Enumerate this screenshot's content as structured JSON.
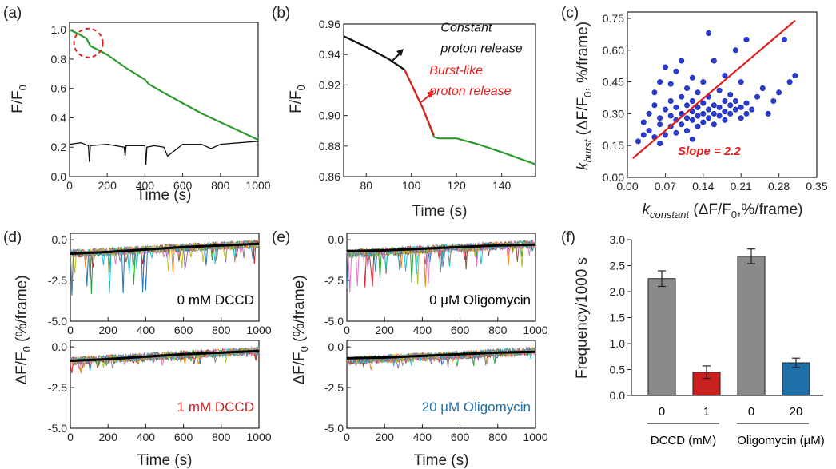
{
  "chart_data": [
    {
      "panel": "(a)",
      "type": "line",
      "xlabel": "Time (s)",
      "ylabel": "F/F0",
      "xlim": [
        0,
        1000
      ],
      "ylim": [
        0,
        1.05
      ],
      "xticks": [
        0,
        200,
        400,
        600,
        800,
        1000
      ],
      "yticks": [
        0.0,
        0.2,
        0.4,
        0.6,
        0.8,
        1.0
      ],
      "colors": {
        "green": "#2e9a2e",
        "black": "#111111",
        "circle": "#e02020"
      },
      "series": [
        {
          "color": "#2e9a2e",
          "x": [
            0,
            50,
            90,
            110,
            200,
            300,
            400,
            420,
            500,
            600,
            700,
            800,
            900,
            1000
          ],
          "y": [
            1.0,
            0.97,
            0.94,
            0.89,
            0.83,
            0.74,
            0.66,
            0.63,
            0.57,
            0.5,
            0.43,
            0.37,
            0.31,
            0.25
          ]
        },
        {
          "color": "#111111",
          "x": [
            0,
            60,
            100,
            105,
            110,
            200,
            290,
            295,
            300,
            400,
            405,
            410,
            450,
            500,
            520,
            600,
            700,
            750,
            800,
            900,
            1000
          ],
          "y": [
            0.22,
            0.23,
            0.21,
            0.1,
            0.21,
            0.22,
            0.2,
            0.14,
            0.21,
            0.21,
            0.08,
            0.2,
            0.21,
            0.2,
            0.14,
            0.22,
            0.22,
            0.19,
            0.22,
            0.23,
            0.24
          ]
        }
      ],
      "highlight": {
        "x": 100,
        "y": 0.91
      }
    },
    {
      "panel": "(b)",
      "type": "line",
      "xlabel": "Time (s)",
      "ylabel": "F/F0",
      "xlim": [
        70,
        155
      ],
      "ylim": [
        0.86,
        0.96
      ],
      "xticks": [
        80,
        100,
        120,
        140
      ],
      "yticks": [
        0.86,
        0.88,
        0.9,
        0.92,
        0.94,
        0.96
      ],
      "series": [
        {
          "color": "#2e9a2e",
          "x": [
            70,
            80,
            90,
            97,
            105,
            110,
            112,
            120,
            130,
            140,
            155
          ],
          "y": [
            0.952,
            0.945,
            0.937,
            0.93,
            0.905,
            0.886,
            0.885,
            0.885,
            0.881,
            0.876,
            0.868
          ]
        },
        {
          "color": "#111111",
          "x": [
            70,
            80,
            90,
            97
          ],
          "y": [
            0.952,
            0.945,
            0.937,
            0.93
          ]
        },
        {
          "color": "#e02020",
          "x": [
            97,
            105,
            110
          ],
          "y": [
            0.93,
            0.905,
            0.887
          ]
        }
      ],
      "annotations": [
        {
          "text": "Constant",
          "color": "#111111",
          "x": 113,
          "y": 0.955
        },
        {
          "text": "proton release",
          "color": "#111111",
          "x": 113,
          "y": 0.9415
        },
        {
          "text": "Burst-like",
          "color": "#e02020",
          "x": 108,
          "y": 0.927
        },
        {
          "text": "proton release",
          "color": "#e02020",
          "x": 108,
          "y": 0.9135
        }
      ]
    },
    {
      "panel": "(c)",
      "type": "scatter",
      "xlabel": "constant",
      "ylabel": "burst",
      "xlim": [
        0.0,
        0.35
      ],
      "ylim": [
        0.0,
        0.78
      ],
      "xticks": [
        "0.00",
        "0.07",
        "0.14",
        "0.21",
        "0.28",
        "0.35"
      ],
      "yticks": [
        "0.00",
        "0.15",
        "0.30",
        "0.45",
        "0.60",
        "0.75"
      ],
      "fit": {
        "x": [
          0.01,
          0.31
        ],
        "y": [
          0.09,
          0.74
        ],
        "color": "#e02020"
      },
      "fit_label": "Slope = 2.2",
      "point_color": "#2b3bd8",
      "points": [
        [
          0.02,
          0.17
        ],
        [
          0.03,
          0.2
        ],
        [
          0.03,
          0.26
        ],
        [
          0.04,
          0.22
        ],
        [
          0.04,
          0.3
        ],
        [
          0.05,
          0.19
        ],
        [
          0.05,
          0.34
        ],
        [
          0.05,
          0.4
        ],
        [
          0.06,
          0.25
        ],
        [
          0.06,
          0.45
        ],
        [
          0.06,
          0.28
        ],
        [
          0.07,
          0.32
        ],
        [
          0.07,
          0.2
        ],
        [
          0.07,
          0.52
        ],
        [
          0.08,
          0.24
        ],
        [
          0.08,
          0.36
        ],
        [
          0.08,
          0.29
        ],
        [
          0.08,
          0.44
        ],
        [
          0.09,
          0.27
        ],
        [
          0.09,
          0.33
        ],
        [
          0.09,
          0.5
        ],
        [
          0.09,
          0.21
        ],
        [
          0.1,
          0.3
        ],
        [
          0.1,
          0.38
        ],
        [
          0.1,
          0.25
        ],
        [
          0.1,
          0.55
        ],
        [
          0.11,
          0.28
        ],
        [
          0.11,
          0.34
        ],
        [
          0.11,
          0.42
        ],
        [
          0.11,
          0.22
        ],
        [
          0.12,
          0.31
        ],
        [
          0.12,
          0.27
        ],
        [
          0.12,
          0.47
        ],
        [
          0.12,
          0.36
        ],
        [
          0.13,
          0.29
        ],
        [
          0.13,
          0.33
        ],
        [
          0.13,
          0.24
        ],
        [
          0.13,
          0.4
        ],
        [
          0.14,
          0.3
        ],
        [
          0.14,
          0.35
        ],
        [
          0.14,
          0.26
        ],
        [
          0.14,
          0.45
        ],
        [
          0.15,
          0.68
        ],
        [
          0.15,
          0.32
        ],
        [
          0.15,
          0.28
        ],
        [
          0.15,
          0.38
        ],
        [
          0.16,
          0.3
        ],
        [
          0.16,
          0.34
        ],
        [
          0.16,
          0.55
        ],
        [
          0.16,
          0.25
        ],
        [
          0.17,
          0.33
        ],
        [
          0.17,
          0.29
        ],
        [
          0.17,
          0.41
        ],
        [
          0.18,
          0.31
        ],
        [
          0.18,
          0.36
        ],
        [
          0.18,
          0.48
        ],
        [
          0.18,
          0.27
        ],
        [
          0.19,
          0.34
        ],
        [
          0.19,
          0.3
        ],
        [
          0.19,
          0.39
        ],
        [
          0.2,
          0.32
        ],
        [
          0.2,
          0.36
        ],
        [
          0.2,
          0.6
        ],
        [
          0.21,
          0.33
        ],
        [
          0.21,
          0.28
        ],
        [
          0.21,
          0.45
        ],
        [
          0.22,
          0.35
        ],
        [
          0.22,
          0.3
        ],
        [
          0.22,
          0.65
        ],
        [
          0.23,
          0.32
        ],
        [
          0.24,
          0.38
        ],
        [
          0.25,
          0.42
        ],
        [
          0.26,
          0.3
        ],
        [
          0.27,
          0.36
        ],
        [
          0.28,
          0.4
        ],
        [
          0.29,
          0.65
        ],
        [
          0.3,
          0.45
        ],
        [
          0.31,
          0.48
        ],
        [
          0.06,
          0.16
        ],
        [
          0.12,
          0.18
        ]
      ]
    },
    {
      "panel": "(d)",
      "type": "line",
      "xlabel": "Time (s)",
      "ylabel": "ΔF/F0 (%/frame)",
      "xlim": [
        0,
        1000
      ],
      "xticks": [
        0,
        200,
        400,
        600,
        800,
        1000
      ],
      "sub_top": {
        "label": "0 mM DCCD",
        "label_color": "#111111",
        "ylim": [
          -5.0,
          0.4
        ],
        "yticks": [
          "-5.0",
          "-2.5",
          "0.0"
        ]
      },
      "sub_bottom": {
        "label": "1 mM DCCD",
        "label_color": "#c8201f",
        "ylim": [
          -5.0,
          0.4
        ],
        "yticks": [
          "-5.0",
          "-2.5",
          "0.0"
        ]
      },
      "mean": {
        "x": [
          0,
          200,
          400,
          600,
          800,
          1000
        ],
        "y": [
          -0.85,
          -0.75,
          -0.6,
          -0.45,
          -0.35,
          -0.25
        ]
      }
    },
    {
      "panel": "(e)",
      "type": "line",
      "xlabel": "Time (s)",
      "ylabel": "ΔF/F0 (%/frame)",
      "xlim": [
        0,
        1000
      ],
      "xticks": [
        0,
        200,
        400,
        600,
        800,
        1000
      ],
      "sub_top": {
        "label": "0 µM Oligomycin",
        "label_color": "#111111",
        "ylim": [
          -5.0,
          0.4
        ],
        "yticks": [
          "-5.0",
          "-2.5",
          "0.0"
        ]
      },
      "sub_bottom": {
        "label": "20 µM Oligomycin",
        "label_color": "#1f6fa8",
        "ylim": [
          -5.0,
          0.4
        ],
        "yticks": [
          "-5.0",
          "-2.5",
          "0.0"
        ]
      },
      "mean": {
        "x": [
          0,
          200,
          400,
          600,
          800,
          1000
        ],
        "y": [
          -0.7,
          -0.65,
          -0.55,
          -0.45,
          -0.35,
          -0.3
        ]
      }
    },
    {
      "panel": "(f)",
      "type": "bar",
      "ylabel": "Frequency/1000 s",
      "ylim": [
        0,
        3.0
      ],
      "yticks": [
        "0.0",
        "0.5",
        "1.0",
        "1.5",
        "2.0",
        "2.5",
        "3.0"
      ],
      "categories": [
        "0",
        "1",
        "0",
        "20"
      ],
      "values": [
        2.25,
        0.45,
        2.68,
        0.63
      ],
      "errors": [
        0.15,
        0.12,
        0.14,
        0.09
      ],
      "colors": [
        "#8a8a8a",
        "#c8201f",
        "#8a8a8a",
        "#1f6fa8"
      ],
      "groups": [
        {
          "label": "DCCD (mM)"
        },
        {
          "label": "Oligomycin  (µM)"
        }
      ]
    }
  ]
}
